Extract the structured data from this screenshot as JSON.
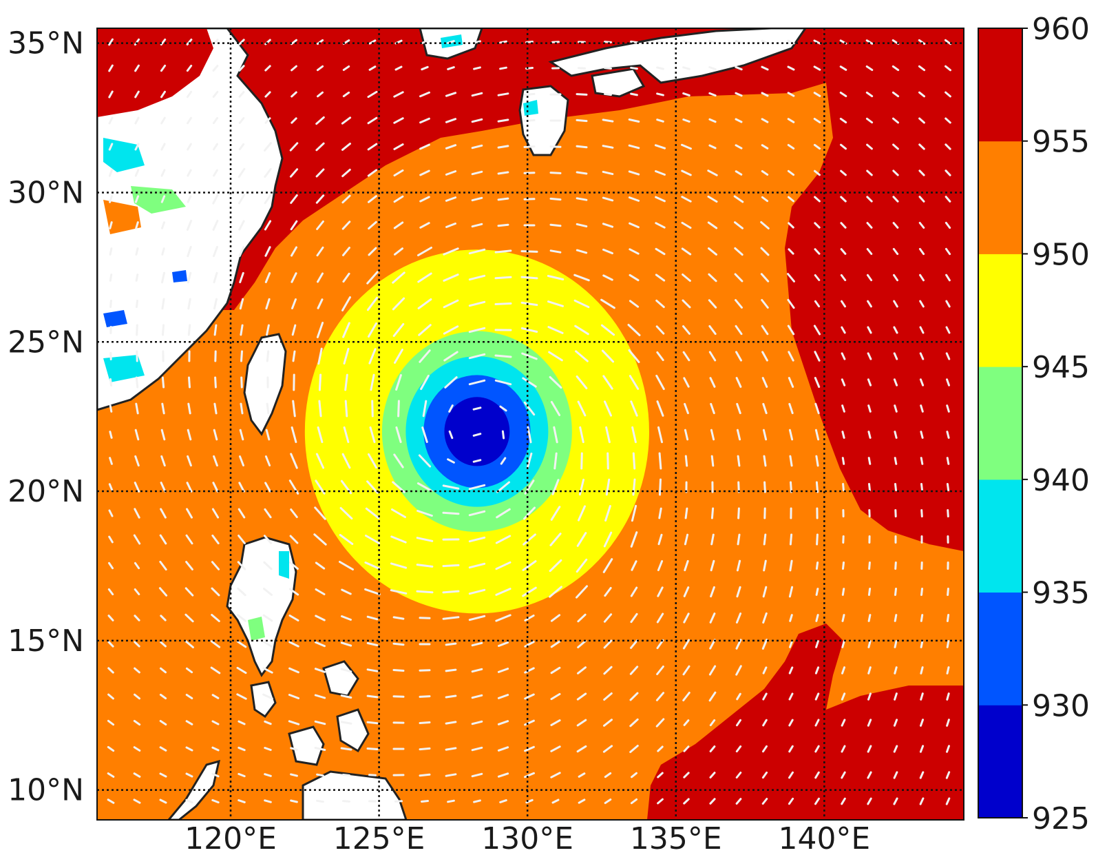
{
  "chart_data": {
    "type": "map",
    "extent": {
      "lon": [
        115.5,
        144.7
      ],
      "lat": [
        9,
        35.5
      ]
    },
    "lat_ticks": [
      {
        "value": 35,
        "label": "35°N"
      },
      {
        "value": 30,
        "label": "30°N"
      },
      {
        "value": 25,
        "label": "25°N"
      },
      {
        "value": 20,
        "label": "20°N"
      },
      {
        "value": 15,
        "label": "15°N"
      },
      {
        "value": 10,
        "label": "10°N"
      }
    ],
    "lon_ticks": [
      {
        "value": 120,
        "label": "120°E"
      },
      {
        "value": 125,
        "label": "125°E"
      },
      {
        "value": 130,
        "label": "130°E"
      },
      {
        "value": 135,
        "label": "135°E"
      },
      {
        "value": 140,
        "label": "140°E"
      }
    ],
    "grid": "dotted",
    "colorbar": {
      "levels": [
        925,
        930,
        935,
        940,
        945,
        950,
        955,
        960
      ],
      "labels": [
        "925",
        "930",
        "935",
        "940",
        "945",
        "950",
        "955",
        "960"
      ],
      "colors": [
        "#0000cc",
        "#0055ff",
        "#00e5ee",
        "#7fff7f",
        "#ffff00",
        "#ff7f00",
        "#cc0000"
      ]
    },
    "cyclone_center": {
      "lon": 128.3,
      "lat": 22.0
    },
    "pressure_rings": [
      {
        "level": 930,
        "radius_deg": 1.1
      },
      {
        "level": 935,
        "radius_deg": 1.8
      },
      {
        "level": 940,
        "radius_deg": 2.4
      },
      {
        "level": 945,
        "radius_deg": 3.2
      },
      {
        "level": 950,
        "radius_deg": 5.8
      }
    ],
    "background_level": 955
  }
}
